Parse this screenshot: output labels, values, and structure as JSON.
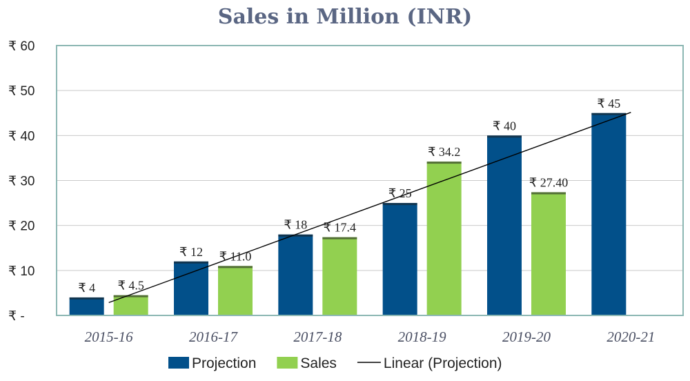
{
  "chart_data": {
    "type": "bar",
    "title": "Sales in Million (INR)",
    "categories": [
      "2015-16",
      "2016-17",
      "2017-18",
      "2018-19",
      "2019-20",
      "2020-21"
    ],
    "series": [
      {
        "name": "Projection",
        "color": "#02508a",
        "values": [
          4,
          12,
          18,
          25,
          40,
          45
        ],
        "labels": [
          "₹ 4",
          "₹ 12",
          "₹ 18",
          "₹ 25",
          "₹ 40",
          "₹ 45"
        ]
      },
      {
        "name": "Sales",
        "color": "#92d050",
        "values": [
          4.5,
          11.0,
          17.4,
          34.2,
          27.4,
          null
        ],
        "labels": [
          "₹ 4.5",
          "₹ 11.0",
          "₹ 17.4",
          "₹ 34.2",
          "₹ 27.40",
          ""
        ]
      }
    ],
    "trendline": {
      "name": "Linear (Projection)",
      "type": "linear",
      "of_series": "Projection",
      "color": "#000000"
    },
    "ylim": [
      0,
      60
    ],
    "yticks": [
      0,
      10,
      20,
      30,
      40,
      50,
      60
    ],
    "ytick_labels": [
      "₹ -",
      "₹ 10",
      "₹ 20",
      "₹ 30",
      "₹ 40",
      "₹ 50",
      "₹ 60"
    ],
    "grid": true,
    "legend": "bottom",
    "xlabel": "",
    "ylabel": ""
  }
}
